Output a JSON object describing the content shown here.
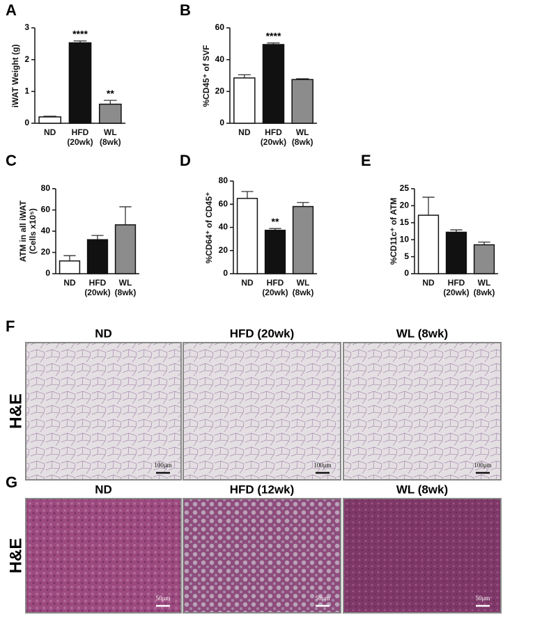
{
  "chart_data": [
    {
      "type": "bar",
      "panel": "A",
      "ylabel": "iWAT Weight (g)",
      "categories": [
        "ND",
        "HFD\n(20wk)",
        "WL\n(8wk)"
      ],
      "values": [
        0.2,
        2.53,
        0.6
      ],
      "errors": [
        0.02,
        0.06,
        0.12
      ],
      "colors": [
        "#ffffff",
        "#111111",
        "#8c8c8c"
      ],
      "annotations": [
        null,
        "****",
        "**"
      ],
      "ylim": [
        0,
        3
      ],
      "yticks": [
        0,
        1,
        2,
        3
      ]
    },
    {
      "type": "bar",
      "panel": "B",
      "ylabel": "%CD45⁺ of SVF",
      "categories": [
        "ND",
        "HFD\n(20wk)",
        "WL\n(8wk)"
      ],
      "values": [
        28.5,
        49.5,
        27.5
      ],
      "errors": [
        2,
        1,
        0.5
      ],
      "colors": [
        "#ffffff",
        "#111111",
        "#8c8c8c"
      ],
      "annotations": [
        null,
        "****",
        null
      ],
      "ylim": [
        0,
        60
      ],
      "yticks": [
        0,
        20,
        40,
        60
      ]
    },
    {
      "type": "bar",
      "panel": "C",
      "ylabel": "ATM in all iWAT\n(Cells x10⁵)",
      "categories": [
        "ND",
        "HFD\n(20wk)",
        "WL\n(8wk)"
      ],
      "values": [
        12,
        32,
        46
      ],
      "errors": [
        5,
        4,
        17
      ],
      "colors": [
        "#ffffff",
        "#111111",
        "#8c8c8c"
      ],
      "annotations": [
        null,
        null,
        null
      ],
      "ylim": [
        0,
        80
      ],
      "yticks": [
        0,
        20,
        40,
        60,
        80
      ]
    },
    {
      "type": "bar",
      "panel": "D",
      "ylabel": "%CD64⁺ of CD45⁺",
      "categories": [
        "ND",
        "HFD\n(20wk)",
        "WL\n(8wk)"
      ],
      "values": [
        65,
        37.5,
        58
      ],
      "errors": [
        6,
        1.5,
        3.5
      ],
      "colors": [
        "#ffffff",
        "#111111",
        "#8c8c8c"
      ],
      "annotations": [
        null,
        "**",
        null
      ],
      "ylim": [
        0,
        80
      ],
      "yticks": [
        0,
        20,
        40,
        60,
        80
      ]
    },
    {
      "type": "bar",
      "panel": "E",
      "ylabel": "%CD11c⁺ of ATM",
      "categories": [
        "ND",
        "HFD\n(20wk)",
        "WL\n(8wk)"
      ],
      "values": [
        17.2,
        12.2,
        8.5
      ],
      "errors": [
        5.3,
        0.7,
        0.8
      ],
      "colors": [
        "#ffffff",
        "#111111",
        "#8c8c8c"
      ],
      "annotations": [
        null,
        null,
        null
      ],
      "ylim": [
        0,
        25
      ],
      "yticks": [
        0,
        5,
        10,
        15,
        20,
        25
      ]
    }
  ],
  "histology": [
    {
      "panel": "F",
      "stain": "H&E",
      "columns": [
        "ND",
        "HFD (20wk)",
        "WL (8wk)"
      ],
      "scale_bar": "100μm"
    },
    {
      "panel": "G",
      "stain": "H&E",
      "columns": [
        "ND",
        "HFD (12wk)",
        "WL (8wk)"
      ],
      "scale_bar": "50μm"
    }
  ]
}
